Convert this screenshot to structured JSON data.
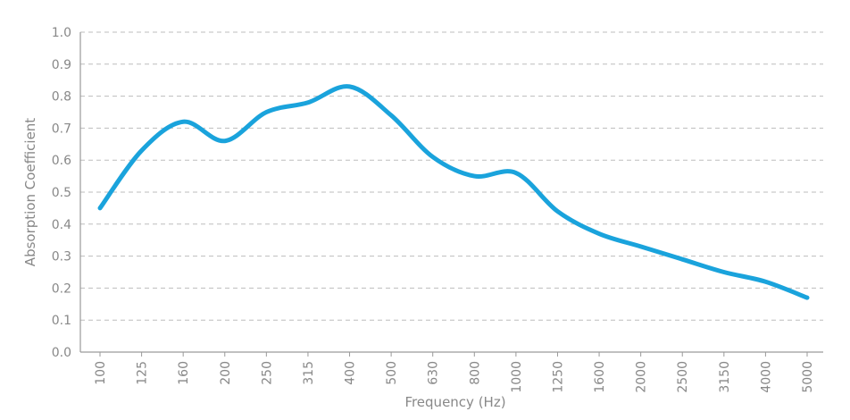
{
  "chart_data": {
    "type": "line",
    "title": "",
    "xlabel": "Frequency (Hz)",
    "ylabel": "Absorption Coefficient",
    "categories": [
      "100",
      "125",
      "160",
      "200",
      "250",
      "315",
      "400",
      "500",
      "630",
      "800",
      "1000",
      "1250",
      "1600",
      "2000",
      "2500",
      "3150",
      "4000",
      "5000"
    ],
    "series": [
      {
        "color": "#1aa3dc",
        "values": [
          0.45,
          0.63,
          0.72,
          0.66,
          0.75,
          0.78,
          0.83,
          0.74,
          0.61,
          0.55,
          0.56,
          0.44,
          0.37,
          0.33,
          0.29,
          0.25,
          0.22,
          0.17
        ]
      }
    ],
    "yticks": [
      "0.0",
      "0.1",
      "0.2",
      "0.3",
      "0.4",
      "0.5",
      "0.6",
      "0.7",
      "0.8",
      "0.9",
      "1.0"
    ],
    "ylim": [
      0,
      1.0
    ],
    "grid": "horizontal-dashed",
    "legend": "none"
  }
}
